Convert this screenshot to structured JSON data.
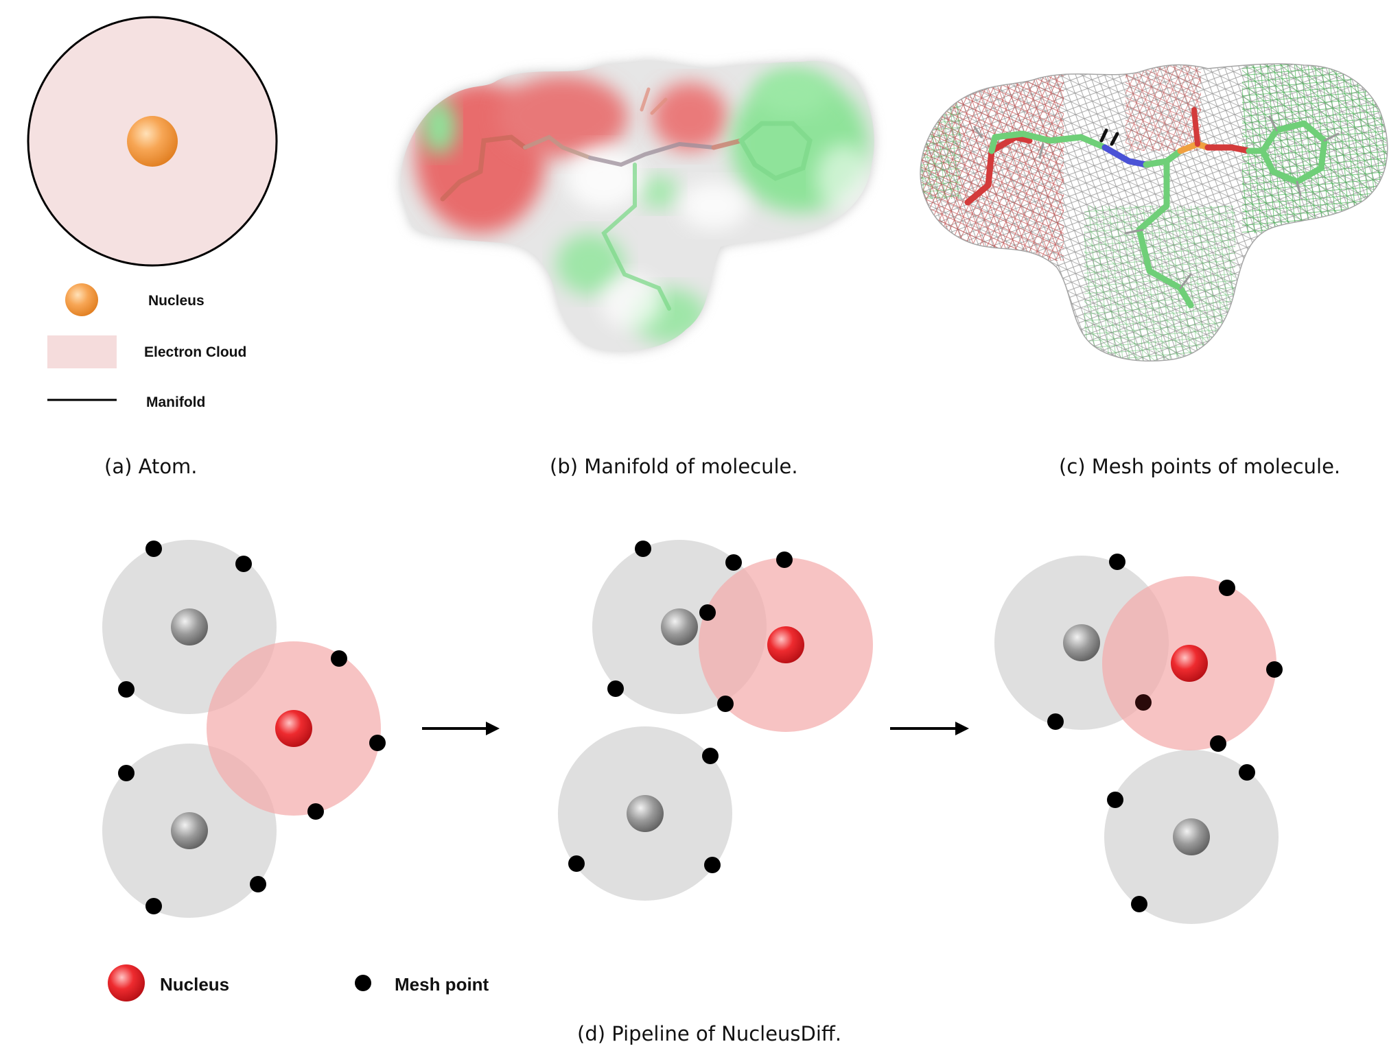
{
  "panel_a": {
    "legend": {
      "nucleus": "Nucleus",
      "electron_cloud": "Electron Cloud",
      "manifold": "Manifold"
    },
    "caption": "(a) Atom."
  },
  "panel_b": {
    "caption": "(b) Manifold of molecule."
  },
  "panel_c": {
    "caption": "(c) Mesh points of molecule."
  },
  "panel_d": {
    "legend": {
      "nucleus": "Nucleus",
      "mesh_point": "Mesh point"
    },
    "caption": "(d) Pipeline of NucleusDiff."
  },
  "colors": {
    "nucleus_orange": "#f4a04a",
    "electron_cloud": "#f5e1e1",
    "red_nucleus": "#e8232b",
    "red_cloud": "#f6b9b9",
    "gray_cloud": "#d9d9d9",
    "gray_nucleus": "#8f8f8f",
    "mesh_point": "#000000",
    "surface_green": "#8fe39a",
    "surface_red": "#e86c6c",
    "stick_green": "#6fcf78"
  }
}
